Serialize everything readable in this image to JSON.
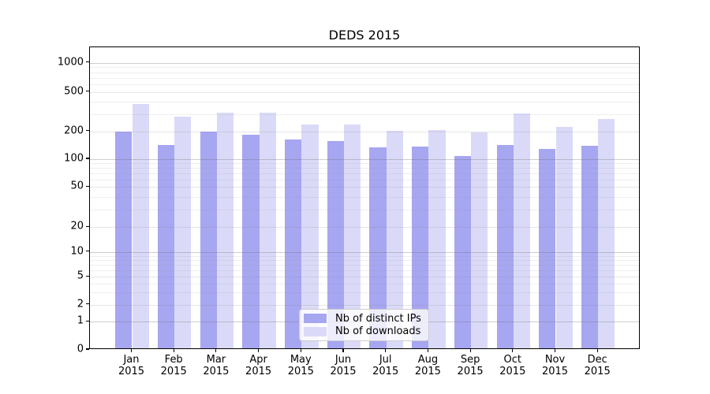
{
  "chart_data": {
    "type": "bar",
    "title": "DEDS 2015",
    "categories": [
      "Jan",
      "Feb",
      "Mar",
      "Apr",
      "May",
      "Jun",
      "Jul",
      "Aug",
      "Sep",
      "Oct",
      "Nov",
      "Dec"
    ],
    "year_label": "2015",
    "series": [
      {
        "name": "Nb of distinct IPs",
        "color": "#a6a6f1",
        "values": [
          190,
          138,
          193,
          176,
          157,
          150,
          129,
          132,
          104,
          136,
          125,
          135
        ]
      },
      {
        "name": "Nb of downloads",
        "color": "#dadaf8",
        "values": [
          364,
          271,
          300,
          298,
          226,
          227,
          196,
          197,
          187,
          292,
          213,
          258
        ]
      }
    ],
    "y_ticks": [
      0,
      1,
      2,
      5,
      10,
      20,
      50,
      100,
      200,
      500,
      1000
    ],
    "yscale": "symlog",
    "ylim": [
      0,
      1460
    ],
    "xlabel": "",
    "ylabel": "",
    "grid": true,
    "legend_position": "lower center"
  }
}
